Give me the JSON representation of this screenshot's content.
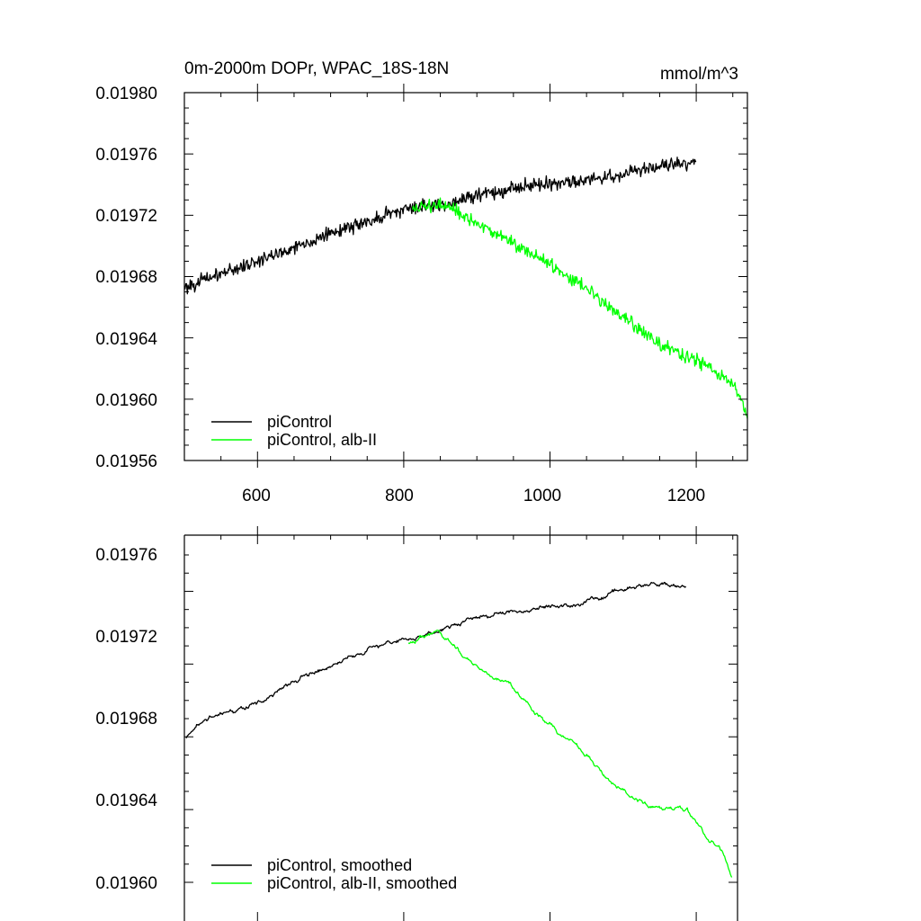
{
  "chart_data": [
    {
      "type": "line",
      "title": "0m-2000m DOPr, WPAC_18S-18N",
      "units": "mmol/m^3",
      "xlim": [
        500,
        1270
      ],
      "ylim": [
        0.01956,
        0.0198
      ],
      "y_ticks": [
        "0.01980",
        "0.01976",
        "0.01972",
        "0.01968",
        "0.01964",
        "0.01960",
        "0.01956"
      ],
      "x_ticks": [
        "600",
        "800",
        "1000",
        "1200"
      ],
      "legend": [
        "piControl",
        "piControl, alb-II"
      ],
      "series": [
        {
          "name": "piControl",
          "color": "#000000",
          "x_start": 500,
          "x_end": 1200,
          "noise": 2.2e-06,
          "anchors": [
            [
              500,
              0.019673
            ],
            [
              550,
              0.019682
            ],
            [
              600,
              0.01969
            ],
            [
              650,
              0.019699
            ],
            [
              700,
              0.019708
            ],
            [
              750,
              0.019716
            ],
            [
              800,
              0.019724
            ],
            [
              850,
              0.019727
            ],
            [
              900,
              0.019733
            ],
            [
              950,
              0.019738
            ],
            [
              1000,
              0.019741
            ],
            [
              1050,
              0.019743
            ],
            [
              1100,
              0.019747
            ],
            [
              1150,
              0.019752
            ],
            [
              1200,
              0.019755
            ]
          ]
        },
        {
          "name": "piControl, alb-II",
          "color": "#00ff00",
          "x_start": 812,
          "x_end": 1270,
          "noise": 2.2e-06,
          "anchors": [
            [
              812,
              0.019724
            ],
            [
              850,
              0.019727
            ],
            [
              880,
              0.01972
            ],
            [
              900,
              0.019714
            ],
            [
              950,
              0.019702
            ],
            [
              1000,
              0.019688
            ],
            [
              1050,
              0.019673
            ],
            [
              1100,
              0.019653
            ],
            [
              1150,
              0.019636
            ],
            [
              1200,
              0.019625
            ],
            [
              1250,
              0.01961
            ],
            [
              1270,
              0.01959
            ]
          ]
        }
      ]
    },
    {
      "type": "line",
      "xlim": [
        500,
        1270
      ],
      "ylim": [
        0.01959,
        0.01977
      ],
      "y_ticks": [
        "0.01976",
        "0.01972",
        "0.01968",
        "0.01964",
        "0.01960"
      ],
      "legend": [
        "piControl, smoothed",
        "piControl, alb-II, smoothed"
      ],
      "series": [
        {
          "name": "piControl, smoothed",
          "color": "#000000",
          "x_start": 502,
          "x_end": 1198,
          "noise": 7e-07,
          "anchors": [
            [
              502,
              0.01967
            ],
            [
              530,
              0.01968
            ],
            [
              550,
              0.019682
            ],
            [
              600,
              0.019688
            ],
            [
              650,
              0.0197
            ],
            [
              700,
              0.019709
            ],
            [
              750,
              0.019718
            ],
            [
              800,
              0.019723
            ],
            [
              850,
              0.019728
            ],
            [
              900,
              0.019735
            ],
            [
              950,
              0.019738
            ],
            [
              1000,
              0.019741
            ],
            [
              1050,
              0.019743
            ],
            [
              1100,
              0.01975
            ],
            [
              1150,
              0.019754
            ],
            [
              1198,
              0.019752
            ]
          ]
        },
        {
          "name": "piControl, alb-II, smoothed",
          "color": "#00ff00",
          "x_start": 812,
          "x_end": 1262,
          "noise": 7e-07,
          "anchors": [
            [
              812,
              0.019722
            ],
            [
              850,
              0.019728
            ],
            [
              875,
              0.01972
            ],
            [
              900,
              0.01971
            ],
            [
              950,
              0.019699
            ],
            [
              1000,
              0.019679
            ],
            [
              1050,
              0.019664
            ],
            [
              1100,
              0.019643
            ],
            [
              1150,
              0.01963
            ],
            [
              1200,
              0.01963
            ],
            [
              1230,
              0.019613
            ],
            [
              1250,
              0.019606
            ],
            [
              1262,
              0.019592
            ]
          ]
        }
      ]
    }
  ]
}
